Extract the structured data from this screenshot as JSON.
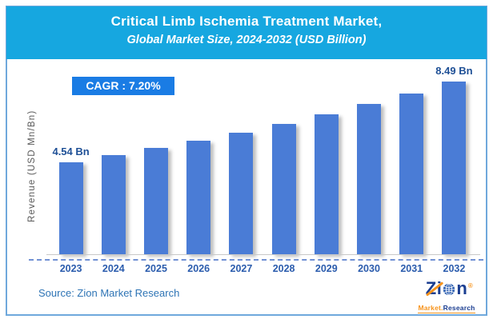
{
  "header": {
    "title_line1": "Critical Limb Ischemia Treatment Market,",
    "title_line2": "Global Market Size, 2024-2032 (USD Billion)"
  },
  "badge": {
    "text": "CAGR :  7.20%"
  },
  "chart_data": {
    "type": "bar",
    "title": "Critical Limb Ischemia Treatment Market, Global Market Size, 2024-2032 (USD Billion)",
    "xlabel": "",
    "ylabel": "Revenue (USD Mn/Bn)",
    "unit": "USD Bn",
    "cagr": "7.20%",
    "categories": [
      "2023",
      "2024",
      "2025",
      "2026",
      "2027",
      "2028",
      "2029",
      "2030",
      "2031",
      "2032"
    ],
    "values": [
      4.54,
      4.87,
      5.22,
      5.59,
      6.0,
      6.43,
      6.89,
      7.39,
      7.92,
      8.49
    ],
    "annotations": [
      {
        "index": 0,
        "label": "4.54 Bn"
      },
      {
        "index": 9,
        "label": "8.49 Bn"
      }
    ],
    "ylim": [
      0,
      9
    ],
    "grid": false,
    "legend": "none",
    "bar_color": "#4a7cd6"
  },
  "footer": {
    "source": "Source: Zion Market Research"
  },
  "logo": {
    "word_z": "Z",
    "word_i": "i",
    "word_n": "n",
    "registered": "®",
    "market": "Market.",
    "research": "Research"
  },
  "colors": {
    "header_bg": "#16a7e0",
    "badge_bg": "#1a7ce4",
    "bar_fill": "#4a7cd6",
    "value_label": "#1f5096",
    "year_label": "#2b5cad",
    "dashed_line": "#7191d4",
    "frame_border": "#6fa8dc",
    "source_text": "#2e74b5",
    "logo_navy": "#1b3e91",
    "logo_orange": "#f7941d"
  }
}
